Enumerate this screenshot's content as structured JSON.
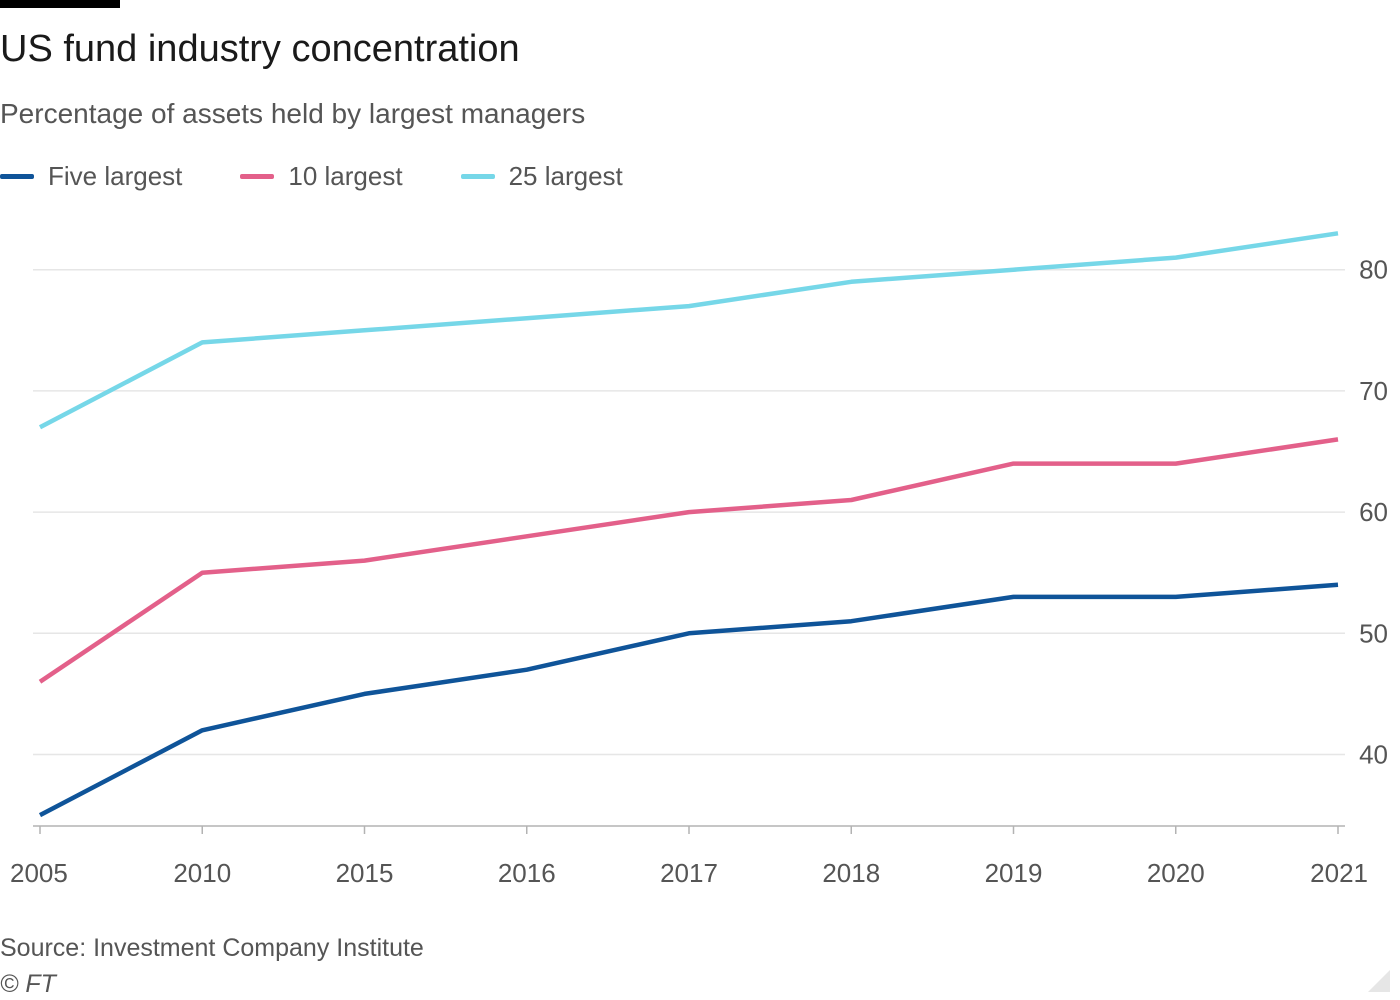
{
  "header": {
    "title": "US fund industry concentration",
    "subtitle": "Percentage of assets held by largest managers"
  },
  "footer": {
    "source": "Source: Investment Company Institute",
    "credit": "© FT"
  },
  "colors": {
    "five_largest": "#0f5499",
    "ten_largest": "#e3608a",
    "twentyfive_largest": "#76d7e8",
    "grid": "#e6e6e6",
    "axis": "#b3b3b3",
    "text": "#555555"
  },
  "chart_data": {
    "type": "line",
    "title": "US fund industry concentration",
    "subtitle": "Percentage of assets held by largest managers",
    "xlabel": "",
    "ylabel": "",
    "categories": [
      "2005",
      "2010",
      "2015",
      "2016",
      "2017",
      "2018",
      "2019",
      "2020",
      "2021"
    ],
    "series": [
      {
        "name": "Five largest",
        "color": "#0f5499",
        "values": [
          35,
          42,
          45,
          47,
          50,
          51,
          53,
          53,
          54
        ]
      },
      {
        "name": "10 largest",
        "color": "#e3608a",
        "values": [
          46,
          55,
          56,
          58,
          60,
          61,
          64,
          64,
          66
        ]
      },
      {
        "name": "25 largest",
        "color": "#76d7e8",
        "values": [
          67,
          74,
          75,
          76,
          77,
          79,
          80,
          81,
          83
        ]
      }
    ],
    "yticks": [
      40,
      50,
      60,
      70,
      80
    ],
    "ylim": [
      34.1,
      84.1
    ],
    "grid": true,
    "y_axis_side": "right",
    "legend_position": "top-left"
  }
}
